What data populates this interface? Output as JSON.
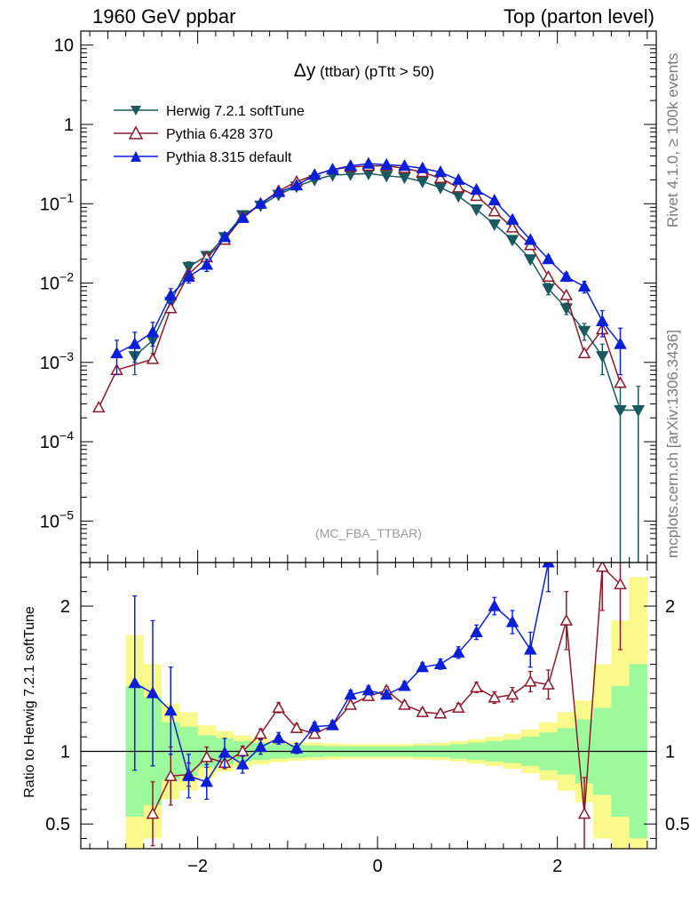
{
  "header": {
    "left": "1960 GeV ppbar",
    "right": "Top (parton level)"
  },
  "side_labels": {
    "rivet": "Rivet 4.1.0, ≥ 100k events",
    "mcplots": "mcplots.cern.ch [arXiv:1306.3436]"
  },
  "chart_data": [
    {
      "type": "line",
      "panel": "main",
      "title_symbol": "Δy",
      "title_rest": " (ttbar) (pTtt > 50)",
      "watermark": "(MC_FBA_TTBAR)",
      "xlabel": "",
      "ylabel": "",
      "yscale": "log",
      "xlim": [
        -3.3,
        3.1
      ],
      "ylim": [
        3e-06,
        15
      ],
      "yticks": [
        1e-05,
        0.0001,
        0.001,
        0.01,
        0.1,
        1,
        10
      ],
      "ytick_labels": [
        {
          "base": "10",
          "exp": "−5"
        },
        {
          "base": "10",
          "exp": "−4"
        },
        {
          "base": "10",
          "exp": "−3"
        },
        {
          "base": "10",
          "exp": "−2"
        },
        {
          "base": "10",
          "exp": "−1"
        },
        {
          "base": "1",
          "exp": ""
        },
        {
          "base": "10",
          "exp": ""
        }
      ],
      "legend": [
        "Herwig 7.2.1 softTune",
        "Pythia 6.428 370",
        "Pythia 8.315 default"
      ],
      "series": [
        {
          "name": "Herwig 7.2.1 softTune",
          "color": "#1a5a5f",
          "marker": "triangle-down-filled",
          "x": [
            -2.7,
            -2.5,
            -2.3,
            -2.1,
            -1.9,
            -1.7,
            -1.5,
            -1.3,
            -1.1,
            -0.9,
            -0.7,
            -0.5,
            -0.3,
            -0.1,
            0.1,
            0.3,
            0.5,
            0.7,
            0.9,
            1.1,
            1.3,
            1.5,
            1.7,
            1.9,
            2.1,
            2.3,
            2.5,
            2.7,
            2.9
          ],
          "y": [
            0.0012,
            0.0019,
            0.0058,
            0.016,
            0.022,
            0.038,
            0.072,
            0.095,
            0.13,
            0.165,
            0.2,
            0.23,
            0.235,
            0.24,
            0.225,
            0.215,
            0.19,
            0.16,
            0.125,
            0.085,
            0.055,
            0.035,
            0.02,
            0.0085,
            0.0048,
            0.0025,
            0.0012,
            0.00025,
            0.00025
          ],
          "err": [
            0.0005,
            0.0006,
            0.0012,
            0.0025,
            0.003,
            0.004,
            0.005,
            0.006,
            0.007,
            0.008,
            0.008,
            0.008,
            0.008,
            0.008,
            0.008,
            0.008,
            0.008,
            0.007,
            0.006,
            0.005,
            0.004,
            0.003,
            0.002,
            0.0014,
            0.0008,
            0.0006,
            0.0005,
            0.00025,
            0.00025
          ]
        },
        {
          "name": "Pythia 6.428 370",
          "color": "#8b1a2b",
          "marker": "triangle-up-open",
          "x": [
            -3.1,
            -2.9,
            -2.5,
            -2.3,
            -2.1,
            -1.9,
            -1.7,
            -1.5,
            -1.3,
            -1.1,
            -0.9,
            -0.7,
            -0.5,
            -0.3,
            -0.1,
            0.1,
            0.3,
            0.5,
            0.7,
            0.9,
            1.1,
            1.3,
            1.5,
            1.7,
            1.9,
            2.1,
            2.3,
            2.5,
            2.7
          ],
          "y": [
            0.00027,
            0.0008,
            0.0011,
            0.0048,
            0.013,
            0.021,
            0.035,
            0.068,
            0.1,
            0.145,
            0.19,
            0.23,
            0.27,
            0.29,
            0.3,
            0.3,
            0.28,
            0.25,
            0.21,
            0.16,
            0.125,
            0.08,
            0.05,
            0.03,
            0.012,
            0.007,
            0.0013,
            0.0026,
            0.00055
          ]
        },
        {
          "name": "Pythia 8.315 default",
          "color": "#0b1fd6",
          "marker": "triangle-up-filled",
          "x": [
            -2.9,
            -2.7,
            -2.5,
            -2.3,
            -2.1,
            -1.9,
            -1.7,
            -1.5,
            -1.3,
            -1.1,
            -0.9,
            -0.7,
            -0.5,
            -0.3,
            -0.1,
            0.1,
            0.3,
            0.5,
            0.7,
            0.9,
            1.1,
            1.3,
            1.5,
            1.7,
            1.9,
            2.1,
            2.3,
            2.5,
            2.7
          ],
          "y": [
            0.0013,
            0.0017,
            0.0024,
            0.007,
            0.012,
            0.017,
            0.038,
            0.066,
            0.1,
            0.14,
            0.17,
            0.23,
            0.27,
            0.3,
            0.32,
            0.31,
            0.3,
            0.28,
            0.25,
            0.2,
            0.15,
            0.11,
            0.063,
            0.035,
            0.02,
            0.012,
            0.009,
            0.0033,
            0.0017
          ],
          "err": [
            0.0006,
            0.0007,
            0.0008,
            0.0015,
            0.002,
            0.003,
            0.004,
            0.005,
            0.006,
            0.007,
            0.008,
            0.008,
            0.008,
            0.008,
            0.008,
            0.008,
            0.008,
            0.008,
            0.008,
            0.007,
            0.006,
            0.005,
            0.004,
            0.003,
            0.002,
            0.0015,
            0.0015,
            0.0012,
            0.001
          ]
        }
      ]
    },
    {
      "type": "line",
      "panel": "ratio",
      "ylabel": "Ratio to Herwig 7.2.1 softTune",
      "xlim": [
        -3.3,
        3.1
      ],
      "ylim": [
        0.33,
        2.3
      ],
      "xticks": [
        -2,
        0,
        2
      ],
      "xtick_labels": [
        "−2",
        "0",
        "2"
      ],
      "yticks": [
        0.5,
        1,
        2
      ],
      "ytick_labels": [
        "0.5",
        "1",
        "2"
      ],
      "bands": {
        "x_edges": [
          -2.8,
          -2.6,
          -2.4,
          -2.2,
          -2.0,
          -1.8,
          -1.6,
          -1.4,
          -1.2,
          -1.0,
          -0.8,
          -0.6,
          -0.4,
          -0.2,
          0.0,
          0.2,
          0.4,
          0.6,
          0.8,
          1.0,
          1.2,
          1.4,
          1.6,
          1.8,
          2.0,
          2.2,
          2.4,
          2.6,
          2.8,
          3.0
        ],
        "green_half": [
          0.45,
          0.37,
          0.2,
          0.17,
          0.11,
          0.09,
          0.07,
          0.06,
          0.05,
          0.045,
          0.04,
          0.035,
          0.035,
          0.035,
          0.035,
          0.035,
          0.04,
          0.04,
          0.05,
          0.06,
          0.07,
          0.08,
          0.1,
          0.13,
          0.16,
          0.22,
          0.3,
          0.45,
          0.6
        ],
        "yellow_half": [
          0.8,
          0.6,
          0.33,
          0.27,
          0.18,
          0.14,
          0.11,
          0.09,
          0.075,
          0.065,
          0.06,
          0.055,
          0.05,
          0.05,
          0.05,
          0.05,
          0.055,
          0.06,
          0.07,
          0.085,
          0.1,
          0.12,
          0.15,
          0.2,
          0.27,
          0.35,
          0.6,
          0.9,
          1.2
        ],
        "green_color": "#9cf99c",
        "yellow_color": "#fafa8c"
      },
      "series": [
        {
          "name": "Pythia 6.428 370",
          "color": "#8b1a2b",
          "marker": "triangle-up-open",
          "x": [
            -2.5,
            -2.3,
            -2.1,
            -1.9,
            -1.7,
            -1.5,
            -1.3,
            -1.1,
            -0.9,
            -0.7,
            -0.5,
            -0.3,
            -0.1,
            0.1,
            0.3,
            0.5,
            0.7,
            0.9,
            1.1,
            1.3,
            1.5,
            1.7,
            1.9,
            2.1,
            2.3,
            2.5,
            2.7
          ],
          "y": [
            0.57,
            0.83,
            0.84,
            0.96,
            0.92,
            1.0,
            1.12,
            1.3,
            1.16,
            1.12,
            1.18,
            1.32,
            1.38,
            1.42,
            1.32,
            1.27,
            1.26,
            1.3,
            1.44,
            1.37,
            1.39,
            1.48,
            1.46,
            1.9,
            0.57,
            2.27,
            2.15
          ],
          "err": [
            0.22,
            0.2,
            0.08,
            0.07,
            0.04,
            0.035,
            0.035,
            0.035,
            0.03,
            0.025,
            0.025,
            0.025,
            0.025,
            0.025,
            0.025,
            0.025,
            0.025,
            0.03,
            0.035,
            0.04,
            0.05,
            0.07,
            0.1,
            0.2,
            0.25,
            0.3,
            0.45
          ]
        },
        {
          "name": "Pythia 8.315 default",
          "color": "#0b1fd6",
          "marker": "triangle-up-filled",
          "x": [
            -2.7,
            -2.5,
            -2.3,
            -2.1,
            -1.9,
            -1.7,
            -1.5,
            -1.3,
            -1.1,
            -0.9,
            -0.7,
            -0.5,
            -0.3,
            -0.1,
            0.1,
            0.3,
            0.5,
            0.7,
            0.9,
            1.1,
            1.3,
            1.5,
            1.7,
            1.9
          ],
          "y": [
            1.47,
            1.4,
            1.28,
            0.83,
            0.79,
            0.99,
            0.91,
            1.03,
            1.09,
            1.02,
            1.17,
            1.18,
            1.39,
            1.42,
            1.39,
            1.45,
            1.58,
            1.6,
            1.68,
            1.82,
            2.0,
            1.89,
            1.7,
            2.3
          ],
          "err": [
            0.6,
            0.5,
            0.3,
            0.15,
            0.12,
            0.1,
            0.06,
            0.05,
            0.04,
            0.035,
            0.03,
            0.03,
            0.03,
            0.03,
            0.03,
            0.03,
            0.03,
            0.035,
            0.04,
            0.05,
            0.06,
            0.08,
            0.12,
            0.2
          ]
        }
      ]
    }
  ]
}
